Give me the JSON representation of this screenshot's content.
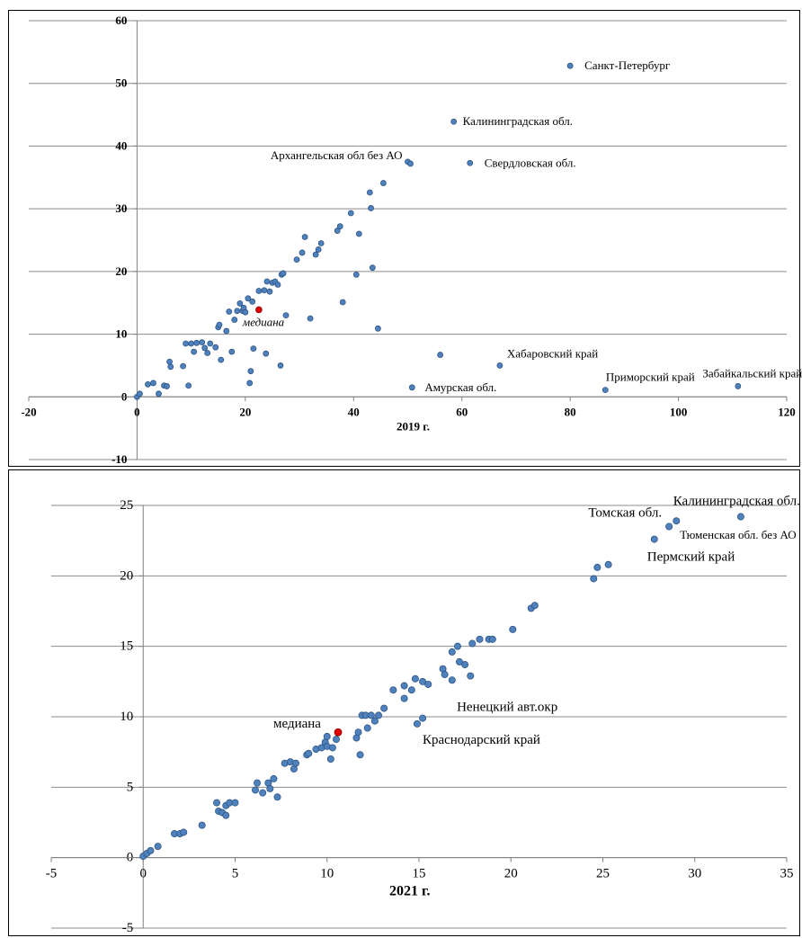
{
  "chart_data": [
    {
      "type": "scatter",
      "title": "",
      "xlabel": "2019 г.",
      "ylabel": "",
      "xlim": [
        -20,
        120
      ],
      "ylim": [
        -10,
        60
      ],
      "x_ticks": [
        -20,
        0,
        20,
        40,
        60,
        80,
        100,
        120
      ],
      "y_ticks": [
        -10,
        0,
        10,
        20,
        30,
        40,
        50,
        60
      ],
      "grid": "horizontal",
      "colors": {
        "point": "#4f81bd",
        "point_edge": "#2f5584",
        "median": "#e00000",
        "grid": "#8c8c8c"
      },
      "points": [
        [
          0,
          0
        ],
        [
          0.5,
          0.5
        ],
        [
          2,
          2
        ],
        [
          3,
          2.2
        ],
        [
          4,
          0.5
        ],
        [
          5,
          1.8
        ],
        [
          5.5,
          1.7
        ],
        [
          6,
          5.6
        ],
        [
          6.2,
          4.8
        ],
        [
          8.5,
          4.9
        ],
        [
          9,
          8.5
        ],
        [
          9.5,
          1.8
        ],
        [
          10,
          8.5
        ],
        [
          10.5,
          7.2
        ],
        [
          11,
          8.6
        ],
        [
          12,
          8.7
        ],
        [
          12.5,
          7.8
        ],
        [
          13,
          7
        ],
        [
          13.5,
          8.5
        ],
        [
          14.5,
          7.9
        ],
        [
          15,
          11.1
        ],
        [
          15.2,
          11.5
        ],
        [
          15.5,
          5.9
        ],
        [
          16.5,
          10.5
        ],
        [
          17,
          13.6
        ],
        [
          17.5,
          7.2
        ],
        [
          18,
          12.3
        ],
        [
          18.5,
          13.7
        ],
        [
          19,
          14.9
        ],
        [
          19.5,
          13.7
        ],
        [
          19.7,
          14.2
        ],
        [
          20,
          13.5
        ],
        [
          20.5,
          15.7
        ],
        [
          20.8,
          2.2
        ],
        [
          21,
          4.1
        ],
        [
          21.3,
          15.2
        ],
        [
          21.5,
          7.7
        ],
        [
          22.5,
          16.9
        ],
        [
          23.5,
          17
        ],
        [
          23.8,
          6.9
        ],
        [
          24,
          18.4
        ],
        [
          24.5,
          16.8
        ],
        [
          25,
          18.2
        ],
        [
          25.5,
          18.4
        ],
        [
          26,
          17.9
        ],
        [
          26.5,
          5
        ],
        [
          26.7,
          19.5
        ],
        [
          27,
          19.7
        ],
        [
          27.5,
          13
        ],
        [
          29.5,
          21.9
        ],
        [
          30.5,
          23
        ],
        [
          31,
          25.5
        ],
        [
          32,
          12.5
        ],
        [
          33,
          22.7
        ],
        [
          33.5,
          23.5
        ],
        [
          34,
          24.5
        ],
        [
          37,
          26.5
        ],
        [
          37.5,
          27.2
        ],
        [
          38,
          15.1
        ],
        [
          39.5,
          29.3
        ],
        [
          40.5,
          19.5
        ],
        [
          41,
          26
        ],
        [
          43,
          32.6
        ],
        [
          43.2,
          30.1
        ],
        [
          43.5,
          20.6
        ],
        [
          44.5,
          10.9
        ],
        [
          45.5,
          34.1
        ],
        [
          50,
          37.5
        ],
        [
          50.5,
          37.2
        ],
        [
          50.8,
          1.5
        ],
        [
          56,
          6.7
        ],
        [
          58.5,
          43.9
        ],
        [
          61.5,
          37.3
        ],
        [
          67,
          5
        ],
        [
          80,
          52.8
        ],
        [
          86.5,
          1.1
        ],
        [
          111,
          1.7
        ]
      ],
      "median": {
        "x": 22.5,
        "y": 13.9,
        "label": "медиана"
      },
      "labels": [
        {
          "text": "Санкт-Петербург",
          "x": 80,
          "y": 52.8
        },
        {
          "text": "Калининградская обл.",
          "x": 58.5,
          "y": 43.9
        },
        {
          "text": "Архангельская обл без АО",
          "x": 50,
          "y": 37.5
        },
        {
          "text": "Свердловская обл.",
          "x": 61.5,
          "y": 37.3
        },
        {
          "text": "Хабаровский край",
          "x": 67,
          "y": 5
        },
        {
          "text": "Амурская обл.",
          "x": 50.8,
          "y": 1.5
        },
        {
          "text": "Приморский край",
          "x": 86.5,
          "y": 1.1
        },
        {
          "text": "Забайкальский край",
          "x": 111,
          "y": 1.7
        }
      ]
    },
    {
      "type": "scatter",
      "title": "",
      "xlabel": "2021 г.",
      "ylabel": "",
      "xlim": [
        -5,
        35
      ],
      "ylim": [
        -5,
        25
      ],
      "x_ticks": [
        -5,
        0,
        5,
        10,
        15,
        20,
        25,
        30,
        35
      ],
      "y_ticks": [
        -5,
        0,
        5,
        10,
        15,
        20,
        25
      ],
      "grid": "horizontal",
      "colors": {
        "point": "#4f81bd",
        "point_edge": "#2f5584",
        "median": "#e00000",
        "grid": "#8c8c8c"
      },
      "points": [
        [
          0,
          0.1
        ],
        [
          0.2,
          0.3
        ],
        [
          0.4,
          0.5
        ],
        [
          0.8,
          0.8
        ],
        [
          1.7,
          1.7
        ],
        [
          2,
          1.7
        ],
        [
          2.2,
          1.8
        ],
        [
          3.2,
          2.3
        ],
        [
          4,
          3.9
        ],
        [
          4.1,
          3.3
        ],
        [
          4.3,
          3.2
        ],
        [
          4.5,
          3
        ],
        [
          4.5,
          3.7
        ],
        [
          4.7,
          3.9
        ],
        [
          5,
          3.9
        ],
        [
          6.1,
          4.8
        ],
        [
          6.2,
          5.3
        ],
        [
          6.5,
          4.6
        ],
        [
          6.8,
          5.3
        ],
        [
          6.9,
          4.9
        ],
        [
          7.1,
          5.6
        ],
        [
          7.3,
          4.3
        ],
        [
          7.7,
          6.7
        ],
        [
          8,
          6.8
        ],
        [
          8.2,
          6.3
        ],
        [
          8.3,
          6.7
        ],
        [
          8.9,
          7.3
        ],
        [
          9,
          7.4
        ],
        [
          9.4,
          7.7
        ],
        [
          9.7,
          7.8
        ],
        [
          9.9,
          8.2
        ],
        [
          10,
          8.6
        ],
        [
          10,
          7.9
        ],
        [
          10.2,
          7
        ],
        [
          10.3,
          7.8
        ],
        [
          10.5,
          8.4
        ],
        [
          11.6,
          8.5
        ],
        [
          11.7,
          8.9
        ],
        [
          11.8,
          7.3
        ],
        [
          11.9,
          10.1
        ],
        [
          12.1,
          10.1
        ],
        [
          12.2,
          9.2
        ],
        [
          12.4,
          10.1
        ],
        [
          12.6,
          9.7
        ],
        [
          12.8,
          10.1
        ],
        [
          13.1,
          10.6
        ],
        [
          13.6,
          11.9
        ],
        [
          14.2,
          11.3
        ],
        [
          14.2,
          12.2
        ],
        [
          14.6,
          11.9
        ],
        [
          14.8,
          12.7
        ],
        [
          14.9,
          9.5
        ],
        [
          15.2,
          9.9
        ],
        [
          15.2,
          12.5
        ],
        [
          15.5,
          12.3
        ],
        [
          16.3,
          13.4
        ],
        [
          16.4,
          13
        ],
        [
          16.8,
          12.6
        ],
        [
          16.8,
          14.6
        ],
        [
          17.1,
          15
        ],
        [
          17.2,
          13.9
        ],
        [
          17.5,
          13.7
        ],
        [
          17.8,
          12.9
        ],
        [
          17.9,
          15.2
        ],
        [
          18.3,
          15.5
        ],
        [
          18.8,
          15.5
        ],
        [
          19,
          15.5
        ],
        [
          20.1,
          16.2
        ],
        [
          21.1,
          17.7
        ],
        [
          21.3,
          17.9
        ],
        [
          24.5,
          19.8
        ],
        [
          24.7,
          20.6
        ],
        [
          25.3,
          20.8
        ],
        [
          27.8,
          22.6
        ],
        [
          28.6,
          23.5
        ],
        [
          29,
          23.9
        ],
        [
          32.5,
          24.2
        ]
      ],
      "median": {
        "x": 10.6,
        "y": 8.9,
        "label": "медиана"
      },
      "labels": [
        {
          "text": "Калининградская обл.",
          "x": 32.5,
          "y": 24.2
        },
        {
          "text": "Томская обл.",
          "x": 28.6,
          "y": 23.5
        },
        {
          "text": "Тюменская обл. без АО",
          "x": 29,
          "y": 23.9
        },
        {
          "text": "Пермский край",
          "x": 27.8,
          "y": 22.6
        },
        {
          "text": "Ненецкий авт.окр",
          "x": 15.2,
          "y": 9.9
        },
        {
          "text": "Краснодарский край",
          "x": 14.9,
          "y": 9.5
        }
      ]
    }
  ]
}
